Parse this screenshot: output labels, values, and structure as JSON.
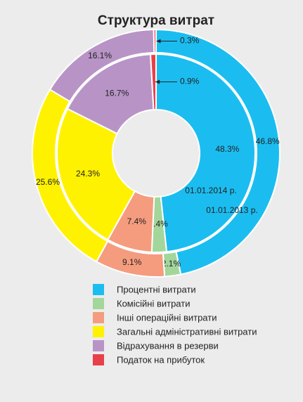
{
  "chart_data": {
    "type": "donut",
    "title": "Структура витрат",
    "categories": [
      "Процентні витрати",
      "Комісійні витрати",
      "Інші операційні витрати",
      "Загальні адміністративні витрати",
      "Відрахування в резерви",
      "Податок на прибуток"
    ],
    "colors": [
      "#1bbdf0",
      "#a3d69b",
      "#f59c7e",
      "#fff200",
      "#b894c6",
      "#e8404a"
    ],
    "series": [
      {
        "name": "01.01.2013 р.",
        "values": [
          46.8,
          2.1,
          9.1,
          25.6,
          16.1,
          0.3
        ],
        "value_labels": [
          "46.8%",
          "2.1%",
          "9.1%",
          "25.6%",
          "16.1%",
          "0.3%"
        ]
      },
      {
        "name": "01.01.2014 р.",
        "values": [
          48.3,
          2.4,
          7.4,
          24.3,
          16.7,
          0.9
        ],
        "value_labels": [
          "48.3%",
          "2.4%",
          "7.4%",
          "24.3%",
          "16.7%",
          "0.9%"
        ]
      }
    ]
  }
}
